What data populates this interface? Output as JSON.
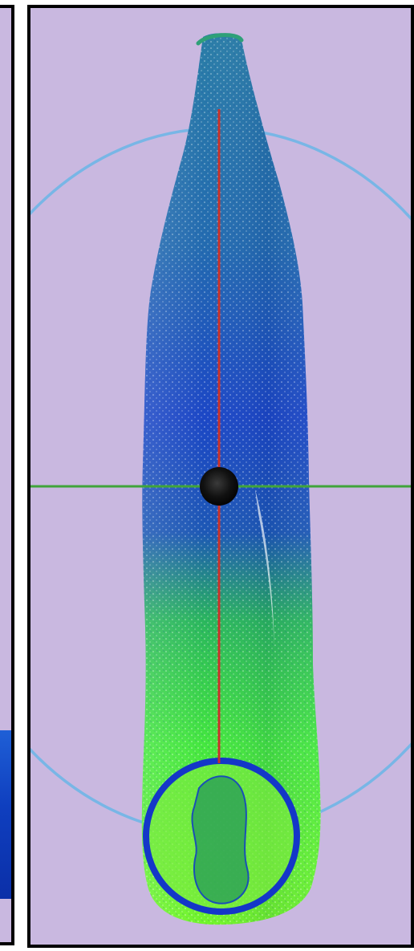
{
  "scene": {
    "background_color": "#c9b8e0",
    "frame_color": "#000000",
    "orbit_ring_color": "#78b6e6",
    "vertical_axis_color": "#c8322a",
    "horizontal_axis_color": "#3fa43a",
    "center_marker_color": "#111111",
    "point_cloud_colors": {
      "top": "#2d7fa5",
      "middle": "#1c46c8",
      "lower": "#2fd84a",
      "bottom": "#6ef32a",
      "base_ring": "#1437c8"
    },
    "icons": {
      "center_marker": "sphere-marker-icon"
    }
  }
}
